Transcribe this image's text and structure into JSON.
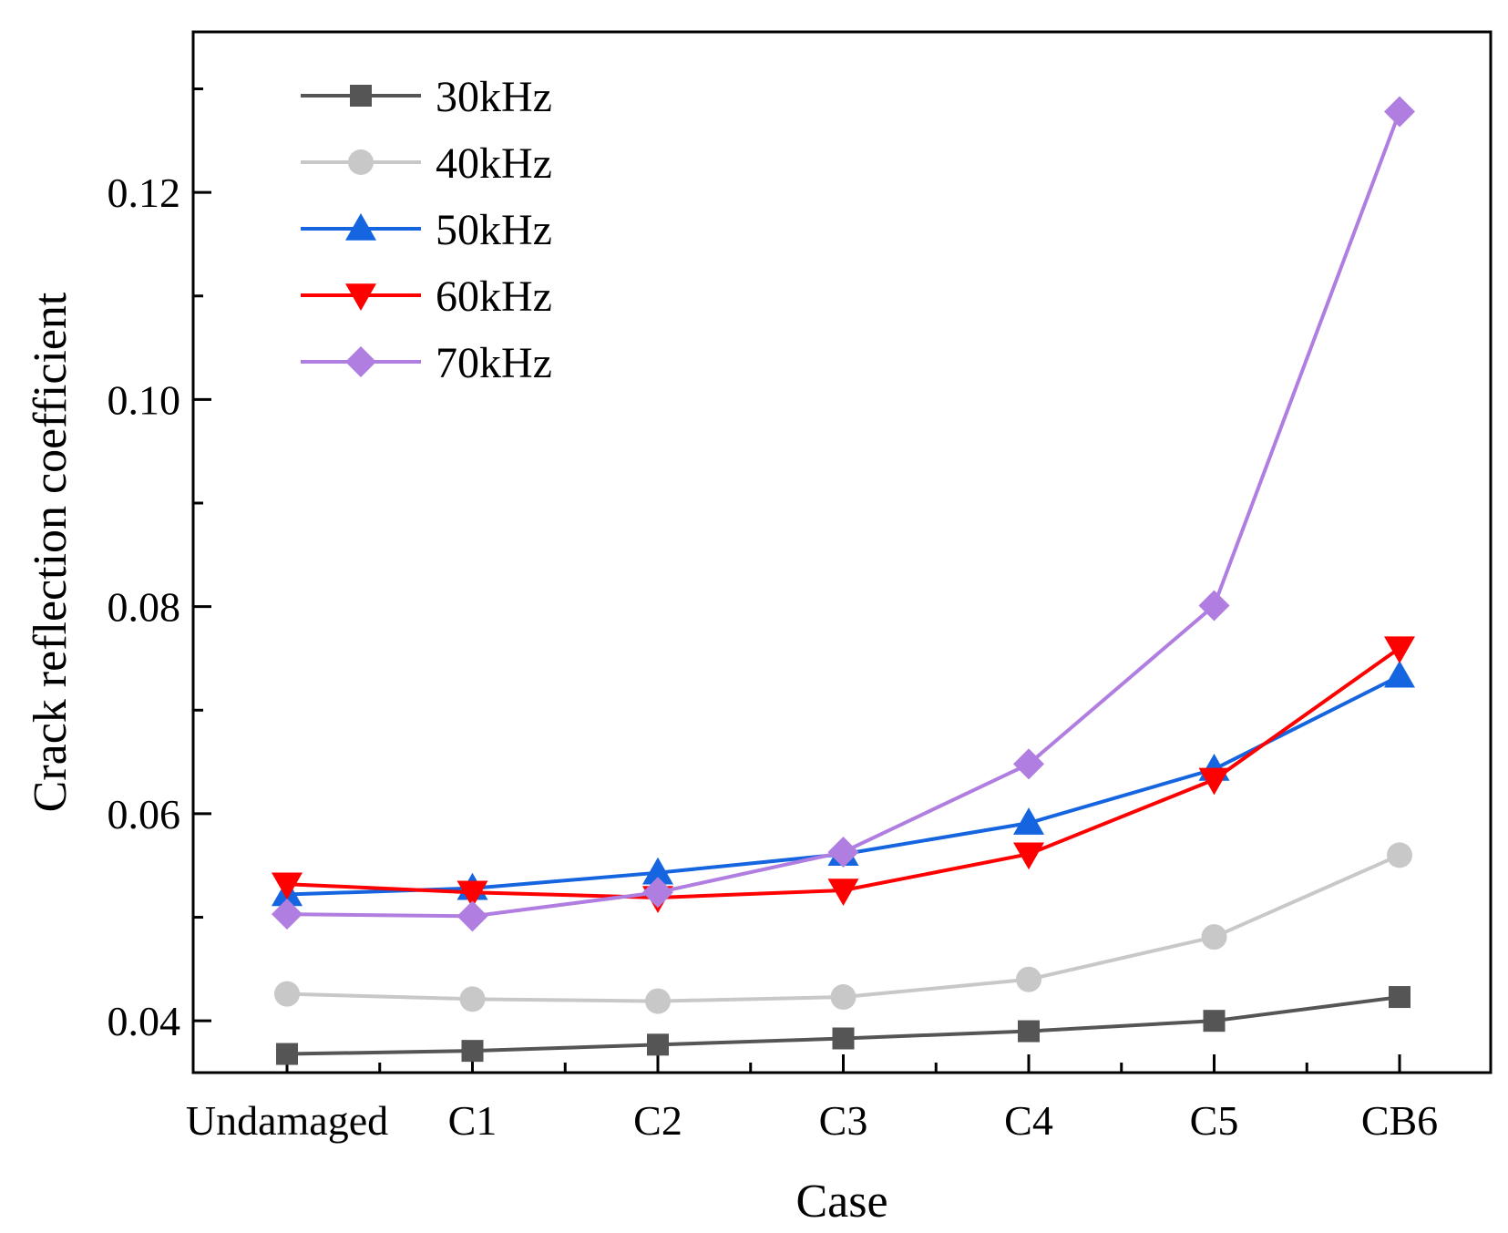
{
  "chart_data": {
    "type": "line",
    "title": "",
    "xlabel": "Case",
    "ylabel": "Crack reflection coefficient",
    "categories": [
      "Undamaged",
      "C1",
      "C2",
      "C3",
      "C4",
      "C5",
      "CB6"
    ],
    "ylim": [
      0.035,
      0.1355
    ],
    "yticks": [
      0.04,
      0.06,
      0.08,
      0.1,
      0.12
    ],
    "ytick_labels": [
      "0.04",
      "0.06",
      "0.08",
      "0.10",
      "0.12"
    ],
    "yminor_step": 0.01,
    "legend_position": "top-left",
    "series": [
      {
        "name": "30kHz",
        "color": "#555555",
        "marker": "square",
        "values": [
          0.0368,
          0.0371,
          0.0377,
          0.0383,
          0.039,
          0.04,
          0.0423
        ]
      },
      {
        "name": "40kHz",
        "color": "#c8c8c8",
        "marker": "circle",
        "values": [
          0.0426,
          0.0421,
          0.0419,
          0.0423,
          0.044,
          0.0481,
          0.056
        ]
      },
      {
        "name": "50kHz",
        "color": "#1565e0",
        "marker": "triangle-up",
        "values": [
          0.0522,
          0.0528,
          0.0543,
          0.0561,
          0.0591,
          0.0643,
          0.0733
        ]
      },
      {
        "name": "60kHz",
        "color": "#ff0000",
        "marker": "triangle-down",
        "values": [
          0.0532,
          0.0524,
          0.0519,
          0.0526,
          0.0561,
          0.0633,
          0.076
        ]
      },
      {
        "name": "70kHz",
        "color": "#b07ee0",
        "marker": "diamond",
        "values": [
          0.0503,
          0.0501,
          0.0524,
          0.0563,
          0.0648,
          0.0801,
          0.1278
        ]
      }
    ]
  }
}
